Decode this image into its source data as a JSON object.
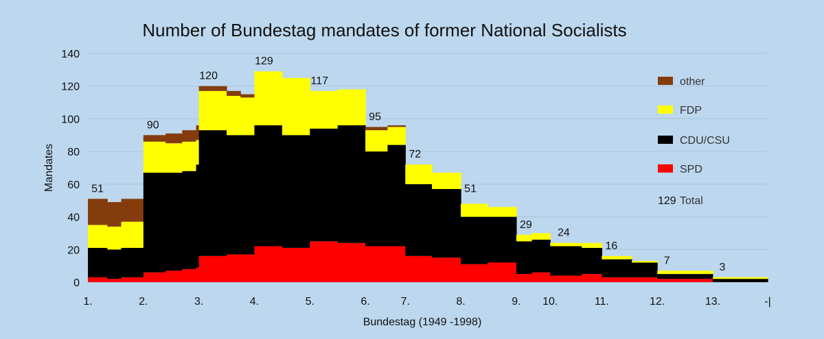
{
  "chart_data": {
    "type": "area",
    "stacked": true,
    "title": "Number of Bundestag mandates of former National Socialists",
    "xlabel": "Bundestag  (1949 -1998)",
    "ylabel": "Mandates",
    "ylim": [
      0,
      140
    ],
    "yticks": [
      0,
      20,
      40,
      60,
      80,
      100,
      120,
      140
    ],
    "grid": true,
    "legend_position": "right",
    "colors": {
      "SPD": "#ff0000",
      "CDU/CSU": "#000000",
      "FDP": "#ffff00",
      "other": "#843c0c"
    },
    "x_tick_labels": [
      "1.",
      "2.",
      "3.",
      "4.",
      "5.",
      "6.",
      "7.",
      "8.",
      "9.",
      "10.",
      "11.",
      "12.",
      "13.",
      "-|"
    ],
    "x_tick_positions": [
      0,
      1,
      2,
      3,
      4,
      5,
      5.72,
      6.72,
      7.72,
      8.33,
      9.26,
      10.26,
      11.26,
      12.25
    ],
    "x_end": 12.25,
    "legend": [
      {
        "key": "other",
        "label": "other"
      },
      {
        "key": "FDP",
        "label": "FDP"
      },
      {
        "key": "CDU/CSU",
        "label": "CDU/CSU"
      },
      {
        "key": "SPD",
        "label": "SPD"
      },
      {
        "key": "total",
        "label": "Total",
        "value": "129"
      }
    ],
    "series_order": [
      "SPD",
      "CDU/CSU",
      "FDP",
      "other"
    ],
    "steps": [
      {
        "x": 0.0,
        "SPD": 3,
        "CDU/CSU": 18,
        "FDP": 14,
        "other": 16
      },
      {
        "x": 0.35,
        "SPD": 2,
        "CDU/CSU": 18,
        "FDP": 14,
        "other": 15
      },
      {
        "x": 0.6,
        "SPD": 3,
        "CDU/CSU": 18,
        "FDP": 16,
        "other": 14
      },
      {
        "x": 1.0,
        "SPD": 6,
        "CDU/CSU": 61,
        "FDP": 19,
        "other": 4
      },
      {
        "x": 1.4,
        "SPD": 7,
        "CDU/CSU": 60,
        "FDP": 18,
        "other": 6
      },
      {
        "x": 1.7,
        "SPD": 8,
        "CDU/CSU": 60,
        "FDP": 18,
        "other": 7
      },
      {
        "x": 1.95,
        "SPD": 9,
        "CDU/CSU": 63,
        "FDP": 15,
        "other": 9
      },
      {
        "x": 2.0,
        "SPD": 16,
        "CDU/CSU": 77,
        "FDP": 24,
        "other": 3
      },
      {
        "x": 2.5,
        "SPD": 17,
        "CDU/CSU": 73,
        "FDP": 24,
        "other": 3
      },
      {
        "x": 2.75,
        "SPD": 17,
        "CDU/CSU": 73,
        "FDP": 23,
        "other": 2
      },
      {
        "x": 3.0,
        "SPD": 22,
        "CDU/CSU": 74,
        "FDP": 33,
        "other": 0
      },
      {
        "x": 3.5,
        "SPD": 21,
        "CDU/CSU": 69,
        "FDP": 35,
        "other": 0
      },
      {
        "x": 4.0,
        "SPD": 25,
        "CDU/CSU": 69,
        "FDP": 23,
        "other": 0
      },
      {
        "x": 4.5,
        "SPD": 24,
        "CDU/CSU": 72,
        "FDP": 22,
        "other": 0
      },
      {
        "x": 5.0,
        "SPD": 22,
        "CDU/CSU": 58,
        "FDP": 13,
        "other": 2
      },
      {
        "x": 5.4,
        "SPD": 22,
        "CDU/CSU": 62,
        "FDP": 11,
        "other": 1
      },
      {
        "x": 5.72,
        "SPD": 16,
        "CDU/CSU": 44,
        "FDP": 12,
        "other": 0
      },
      {
        "x": 6.2,
        "SPD": 15,
        "CDU/CSU": 42,
        "FDP": 10,
        "other": 0
      },
      {
        "x": 6.72,
        "SPD": 11,
        "CDU/CSU": 29,
        "FDP": 8,
        "other": 0
      },
      {
        "x": 7.2,
        "SPD": 12,
        "CDU/CSU": 28,
        "FDP": 6,
        "other": 0
      },
      {
        "x": 7.72,
        "SPD": 5,
        "CDU/CSU": 20,
        "FDP": 4,
        "other": 0
      },
      {
        "x": 8.0,
        "SPD": 6,
        "CDU/CSU": 20,
        "FDP": 4,
        "other": 0
      },
      {
        "x": 8.33,
        "SPD": 4,
        "CDU/CSU": 18,
        "FDP": 2,
        "other": 0
      },
      {
        "x": 8.9,
        "SPD": 5,
        "CDU/CSU": 16,
        "FDP": 3,
        "other": 0
      },
      {
        "x": 9.26,
        "SPD": 3,
        "CDU/CSU": 11,
        "FDP": 2,
        "other": 0
      },
      {
        "x": 9.8,
        "SPD": 3,
        "CDU/CSU": 9,
        "FDP": 1,
        "other": 0
      },
      {
        "x": 10.26,
        "SPD": 2,
        "CDU/CSU": 3,
        "FDP": 2,
        "other": 0
      },
      {
        "x": 11.26,
        "SPD": 0,
        "CDU/CSU": 2,
        "FDP": 1,
        "other": 0
      }
    ],
    "totals": [
      {
        "x": 0.0,
        "value": 51
      },
      {
        "x": 1.0,
        "value": 90
      },
      {
        "x": 2.0,
        "value": 120
      },
      {
        "x": 3.0,
        "value": 129
      },
      {
        "x": 4.0,
        "value": 117
      },
      {
        "x": 5.0,
        "value": 95
      },
      {
        "x": 5.72,
        "value": 72
      },
      {
        "x": 6.72,
        "value": 51
      },
      {
        "x": 7.72,
        "value": 29
      },
      {
        "x": 8.4,
        "value": 24
      },
      {
        "x": 9.26,
        "value": 16
      },
      {
        "x": 10.26,
        "value": 7
      },
      {
        "x": 11.26,
        "value": 3
      }
    ]
  }
}
